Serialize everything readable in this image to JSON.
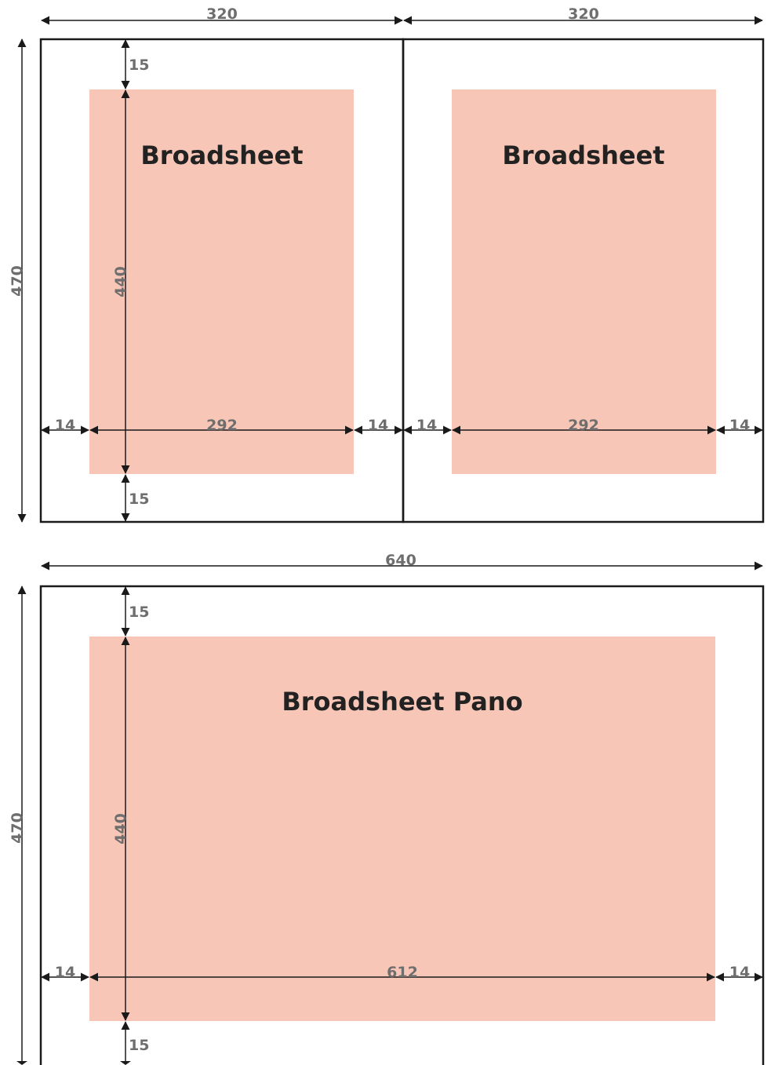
{
  "colors": {
    "ad_fill": "#f8c6b6",
    "line": "#1a1a1a",
    "dimension_text": "#6e6e6e",
    "title_text": "#222222"
  },
  "spread": {
    "page_width_label": "320",
    "height_label": "470",
    "pages": [
      {
        "title": "Broadsheet",
        "top_margin": "15",
        "bottom_margin": "15",
        "ad_height": "440",
        "ad_width": "292",
        "left_margin": "14",
        "right_margin": "14"
      },
      {
        "title": "Broadsheet",
        "ad_width": "292",
        "left_margin": "14",
        "right_margin": "14"
      }
    ]
  },
  "pano": {
    "title": "Broadsheet Pano",
    "width_label": "640",
    "height_label": "470",
    "top_margin": "15",
    "bottom_margin": "15",
    "ad_height": "440",
    "ad_width": "612",
    "left_margin": "14",
    "right_margin": "14"
  }
}
